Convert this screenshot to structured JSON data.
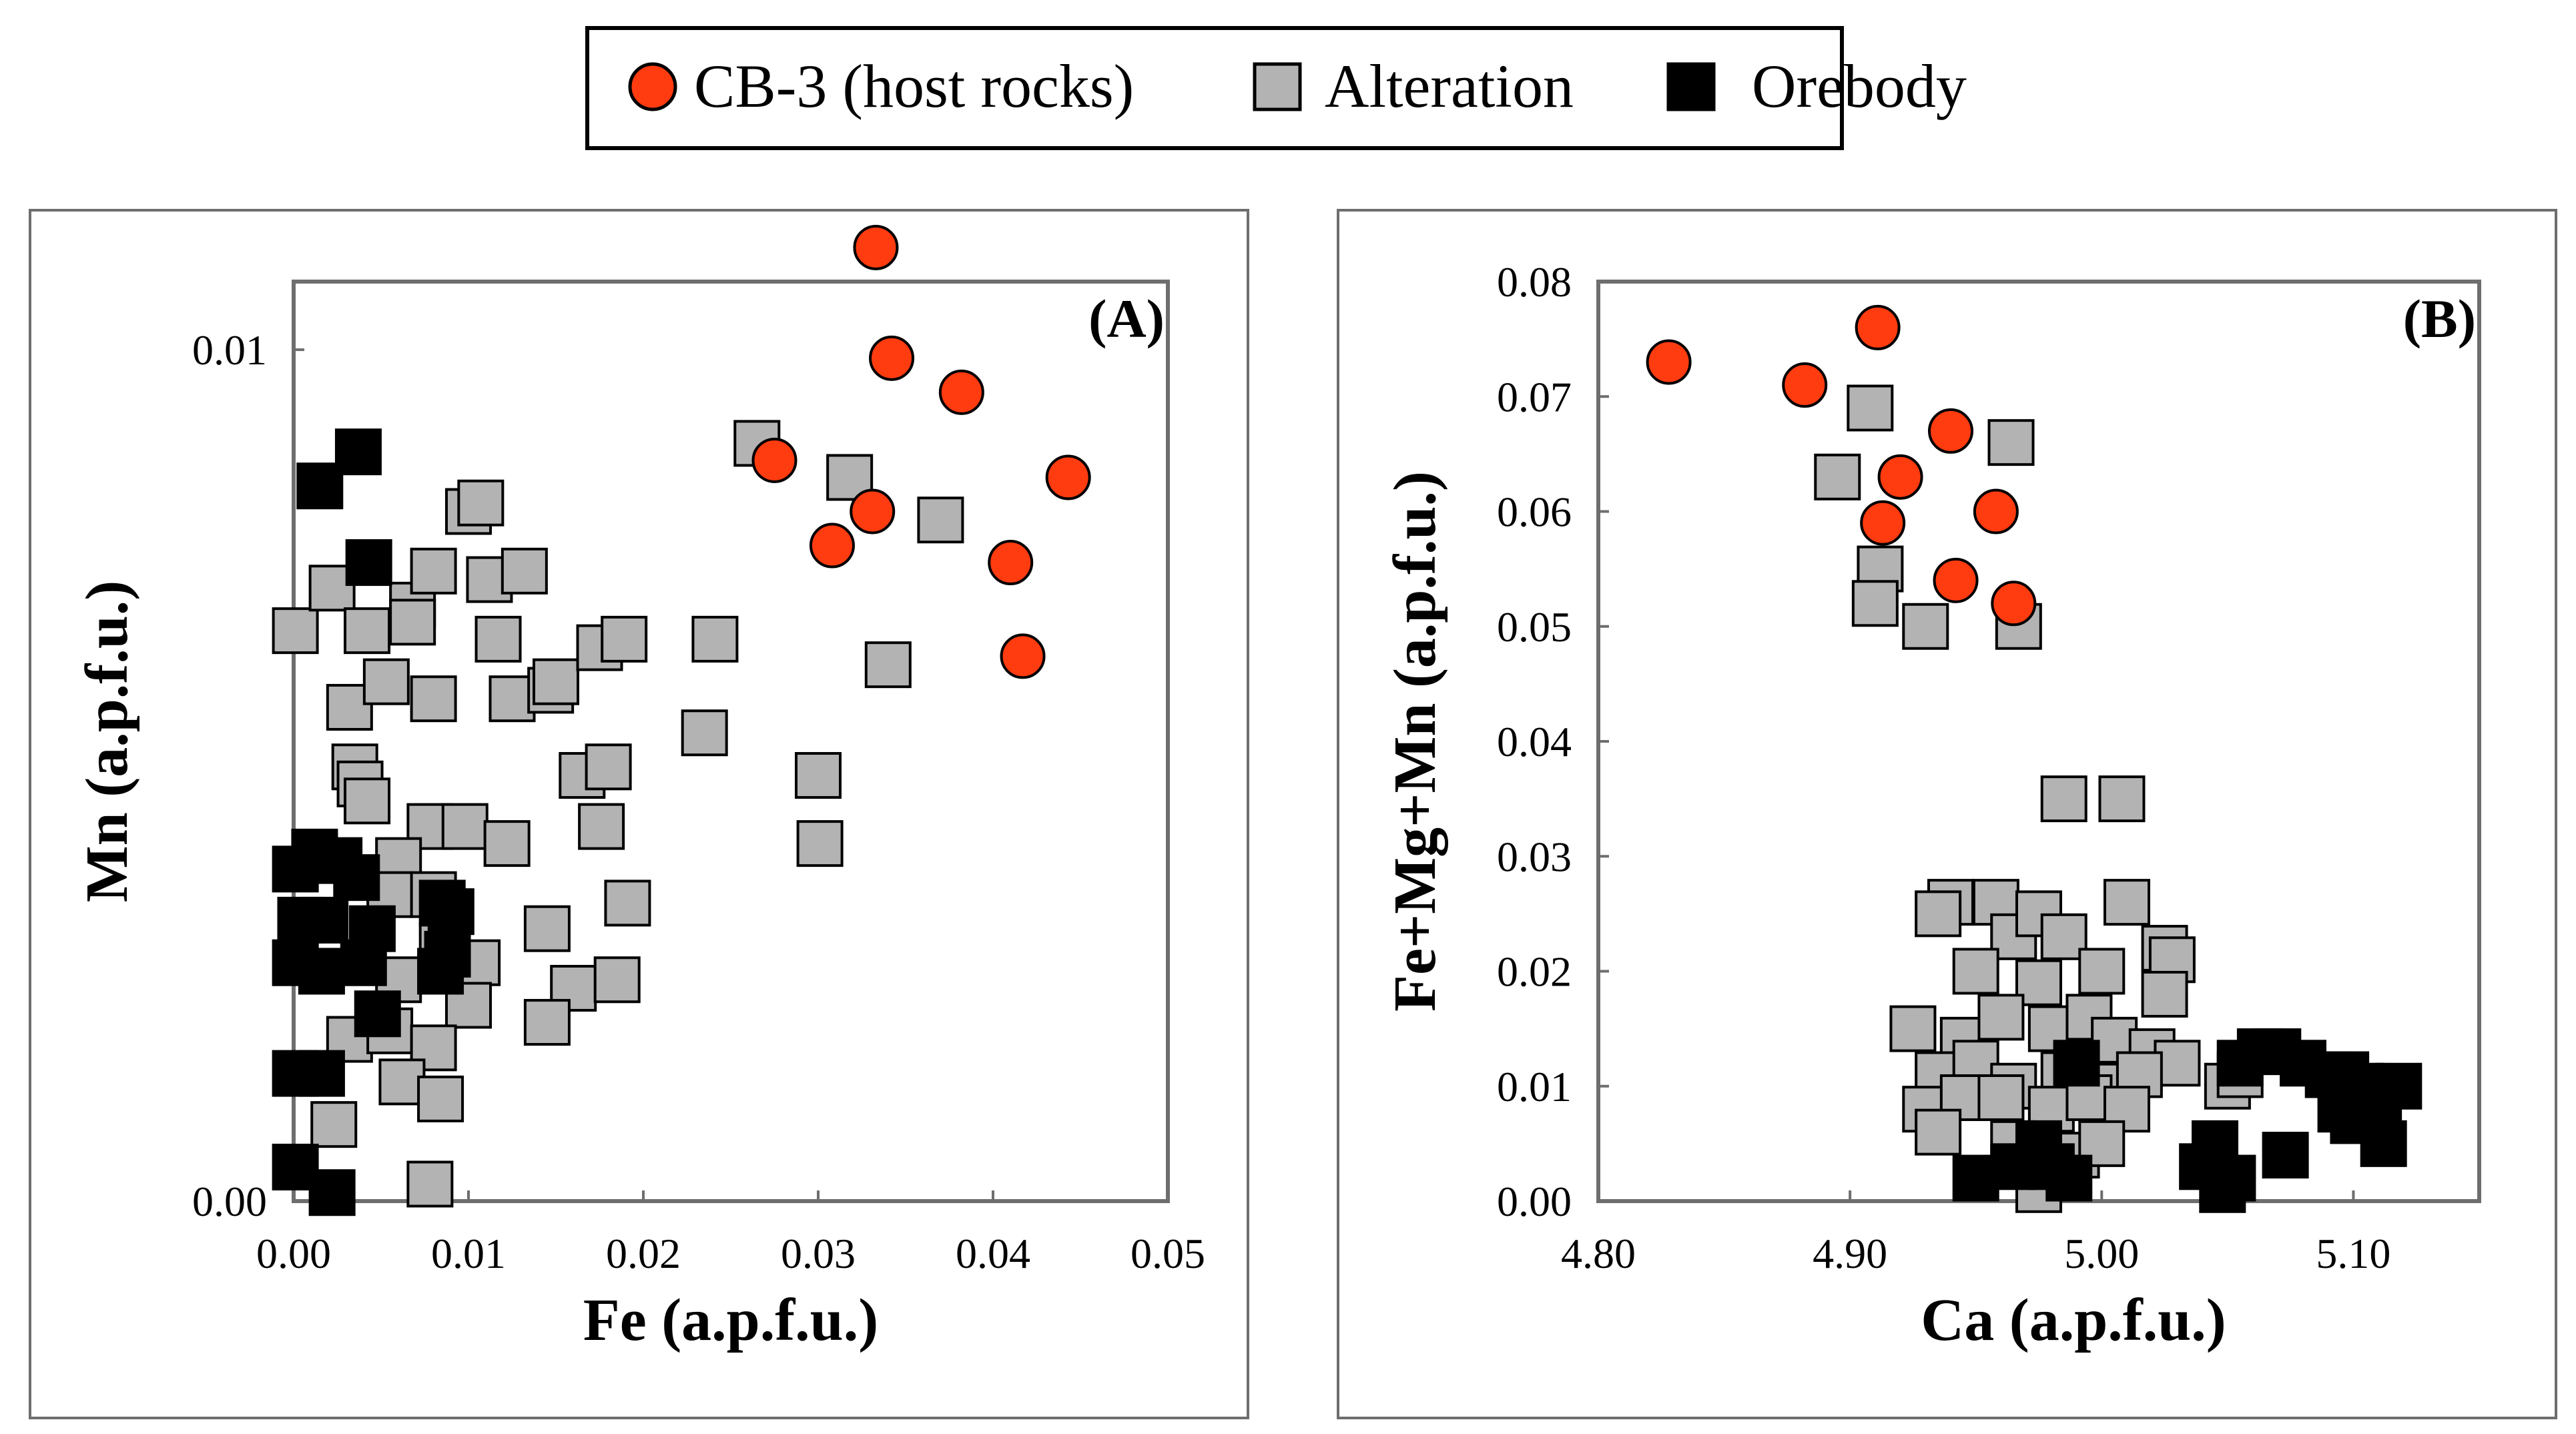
{
  "colors": {
    "host": "#ff3b10",
    "alteration": "#b3b3b3",
    "orebody": "#000000",
    "frame": "#6e6e6e",
    "outline": "#000000"
  },
  "legend": {
    "entries": [
      {
        "label": "CB-3 (host rocks)",
        "series": "host",
        "shape": "circle"
      },
      {
        "label": "Alteration",
        "series": "alteration",
        "shape": "square"
      },
      {
        "label": "Orebody",
        "series": "orebody",
        "shape": "square"
      }
    ]
  },
  "chart_data": [
    {
      "type": "scatter",
      "panel_label": "(A)",
      "xlabel": "Fe (a.p.f.u.)",
      "ylabel": "Mn (a.p.f.u.)",
      "xlim": [
        0,
        0.05
      ],
      "ylim": [
        0,
        0.0108
      ],
      "xticks": [
        0,
        0.01,
        0.02,
        0.03,
        0.04,
        0.05
      ],
      "xtick_labels": [
        "0.00",
        "0.01",
        "0.02",
        "0.03",
        "0.04",
        "0.05"
      ],
      "yticks": [
        0,
        0.01
      ],
      "ytick_labels": [
        "0.00",
        "0.01"
      ],
      "series": [
        {
          "name": "Alteration",
          "key": "alteration",
          "points": [
            [
              0.0001,
              0.0067
            ],
            [
              0.0022,
              0.0072
            ],
            [
              0.0042,
              0.0067
            ],
            [
              0.0068,
              0.007
            ],
            [
              0.008,
              0.0074
            ],
            [
              0.01,
              0.0081
            ],
            [
              0.0107,
              0.0082
            ],
            [
              0.0112,
              0.0073
            ],
            [
              0.0132,
              0.0074
            ],
            [
              0.0117,
              0.0066
            ],
            [
              0.0068,
              0.0068
            ],
            [
              0.0032,
              0.0058
            ],
            [
              0.0053,
              0.0061
            ],
            [
              0.008,
              0.0059
            ],
            [
              0.0125,
              0.0059
            ],
            [
              0.0147,
              0.006
            ],
            [
              0.015,
              0.0061
            ],
            [
              0.0175,
              0.0065
            ],
            [
              0.0189,
              0.0066
            ],
            [
              0.0241,
              0.0066
            ],
            [
              0.0235,
              0.0055
            ],
            [
              0.0165,
              0.005
            ],
            [
              0.018,
              0.0051
            ],
            [
              0.0176,
              0.0044
            ],
            [
              0.0035,
              0.0051
            ],
            [
              0.0038,
              0.0049
            ],
            [
              0.0042,
              0.0047
            ],
            [
              0.0078,
              0.0044
            ],
            [
              0.0098,
              0.0044
            ],
            [
              0.0122,
              0.0042
            ],
            [
              0.006,
              0.004
            ],
            [
              0.0055,
              0.0036
            ],
            [
              0.008,
              0.0036
            ],
            [
              0.0191,
              0.0035
            ],
            [
              0.0145,
              0.0032
            ],
            [
              0.0085,
              0.003
            ],
            [
              0.0105,
              0.0028
            ],
            [
              0.016,
              0.0025
            ],
            [
              0.0185,
              0.0026
            ],
            [
              0.006,
              0.0026
            ],
            [
              0.01,
              0.0023
            ],
            [
              0.0145,
              0.0021
            ],
            [
              0.0032,
              0.0019
            ],
            [
              0.0055,
              0.002
            ],
            [
              0.008,
              0.0018
            ],
            [
              0.0062,
              0.0014
            ],
            [
              0.0084,
              0.0012
            ],
            [
              0.0023,
              0.0009
            ],
            [
              0.0078,
              0.0002
            ],
            [
              0.0265,
              0.0089
            ],
            [
              0.0318,
              0.0085
            ],
            [
              0.037,
              0.008
            ],
            [
              0.034,
              0.0063
            ],
            [
              0.03,
              0.005
            ],
            [
              0.0301,
              0.0042
            ]
          ]
        },
        {
          "name": "Orebody",
          "key": "orebody",
          "points": [
            [
              0.0015,
              0.0084
            ],
            [
              0.0037,
              0.0088
            ],
            [
              0.0043,
              0.0075
            ],
            [
              0.0001,
              0.0039
            ],
            [
              0.0012,
              0.0041
            ],
            [
              0.0026,
              0.004
            ],
            [
              0.0036,
              0.0038
            ],
            [
              0.0004,
              0.0033
            ],
            [
              0.0018,
              0.0033
            ],
            [
              0.0045,
              0.0032
            ],
            [
              0.0085,
              0.0035
            ],
            [
              0.009,
              0.0034
            ],
            [
              0.0001,
              0.0028
            ],
            [
              0.0016,
              0.0027
            ],
            [
              0.004,
              0.0028
            ],
            [
              0.0088,
              0.0029
            ],
            [
              0.0084,
              0.0027
            ],
            [
              0.0048,
              0.0022
            ],
            [
              0.0001,
              0.0015
            ],
            [
              0.0016,
              0.0015
            ],
            [
              0.0001,
              0.0004
            ],
            [
              0.0022,
              0.0001
            ]
          ]
        },
        {
          "name": "CB-3 (host rocks)",
          "key": "host",
          "points": [
            [
              0.0333,
              0.0112
            ],
            [
              0.0342,
              0.0099
            ],
            [
              0.0382,
              0.0095
            ],
            [
              0.0275,
              0.0087
            ],
            [
              0.0443,
              0.0085
            ],
            [
              0.0331,
              0.0081
            ],
            [
              0.0308,
              0.0077
            ],
            [
              0.041,
              0.0075
            ],
            [
              0.0417,
              0.0064
            ]
          ]
        }
      ]
    },
    {
      "type": "scatter",
      "panel_label": "(B)",
      "xlabel": "Ca (a.p.f.u.)",
      "ylabel": "Fe+Mg+Mn (a.p.f.u.)",
      "xlim": [
        4.8,
        5.15
      ],
      "ylim": [
        0,
        0.08
      ],
      "xticks": [
        4.8,
        4.9,
        5.0,
        5.1
      ],
      "xtick_labels": [
        "4.80",
        "4.90",
        "5.00",
        "5.10"
      ],
      "yticks": [
        0,
        0.01,
        0.02,
        0.03,
        0.04,
        0.05,
        0.06,
        0.07,
        0.08
      ],
      "ytick_labels": [
        "0.00",
        "0.01",
        "0.02",
        "0.03",
        "0.04",
        "0.05",
        "0.06",
        "0.07",
        "0.08"
      ],
      "series": [
        {
          "name": "Alteration",
          "key": "alteration",
          "points": [
            [
              4.908,
              0.069
            ],
            [
              4.895,
              0.063
            ],
            [
              4.912,
              0.055
            ],
            [
              4.91,
              0.052
            ],
            [
              4.93,
              0.05
            ],
            [
              4.964,
              0.066
            ],
            [
              4.967,
              0.05
            ],
            [
              4.985,
              0.035
            ],
            [
              5.008,
              0.035
            ],
            [
              4.94,
              0.026
            ],
            [
              4.935,
              0.025
            ],
            [
              4.958,
              0.026
            ],
            [
              4.965,
              0.023
            ],
            [
              4.975,
              0.025
            ],
            [
              4.985,
              0.023
            ],
            [
              5.01,
              0.026
            ],
            [
              5.025,
              0.022
            ],
            [
              5.028,
              0.021
            ],
            [
              4.95,
              0.02
            ],
            [
              4.975,
              0.019
            ],
            [
              5.0,
              0.02
            ],
            [
              5.025,
              0.018
            ],
            [
              4.925,
              0.015
            ],
            [
              4.945,
              0.014
            ],
            [
              4.96,
              0.016
            ],
            [
              4.98,
              0.015
            ],
            [
              4.995,
              0.016
            ],
            [
              5.005,
              0.014
            ],
            [
              5.02,
              0.013
            ],
            [
              5.03,
              0.012
            ],
            [
              4.935,
              0.011
            ],
            [
              4.95,
              0.012
            ],
            [
              4.965,
              0.01
            ],
            [
              4.985,
              0.011
            ],
            [
              5.0,
              0.01
            ],
            [
              5.015,
              0.011
            ],
            [
              4.93,
              0.008
            ],
            [
              4.945,
              0.009
            ],
            [
              4.96,
              0.009
            ],
            [
              4.98,
              0.008
            ],
            [
              4.995,
              0.009
            ],
            [
              5.01,
              0.008
            ],
            [
              4.935,
              0.006
            ],
            [
              4.965,
              0.005
            ],
            [
              4.99,
              0.004
            ],
            [
              5.0,
              0.005
            ],
            [
              4.985,
              0.002
            ],
            [
              4.975,
              0.001
            ],
            [
              5.05,
              0.01
            ],
            [
              5.055,
              0.011
            ]
          ]
        },
        {
          "name": "Orebody",
          "key": "orebody",
          "points": [
            [
              4.99,
              0.012
            ],
            [
              4.95,
              0.002
            ],
            [
              4.965,
              0.003
            ],
            [
              4.975,
              0.005
            ],
            [
              4.98,
              0.003
            ],
            [
              4.987,
              0.002
            ],
            [
              5.04,
              0.003
            ],
            [
              5.045,
              0.005
            ],
            [
              5.048,
              0.001
            ],
            [
              5.052,
              0.002
            ],
            [
              5.073,
              0.004
            ],
            [
              5.055,
              0.012
            ],
            [
              5.063,
              0.013
            ],
            [
              5.07,
              0.013
            ],
            [
              5.08,
              0.012
            ],
            [
              5.09,
              0.011
            ],
            [
              5.097,
              0.011
            ],
            [
              5.103,
              0.01
            ],
            [
              5.095,
              0.008
            ],
            [
              5.1,
              0.007
            ],
            [
              5.11,
              0.008
            ],
            [
              5.118,
              0.01
            ],
            [
              5.112,
              0.005
            ]
          ]
        },
        {
          "name": "CB-3 (host rocks)",
          "key": "host",
          "points": [
            [
              4.828,
              0.073
            ],
            [
              4.882,
              0.071
            ],
            [
              4.911,
              0.076
            ],
            [
              4.94,
              0.067
            ],
            [
              4.92,
              0.063
            ],
            [
              4.913,
              0.059
            ],
            [
              4.958,
              0.06
            ],
            [
              4.942,
              0.054
            ],
            [
              4.965,
              0.052
            ]
          ]
        }
      ]
    }
  ]
}
